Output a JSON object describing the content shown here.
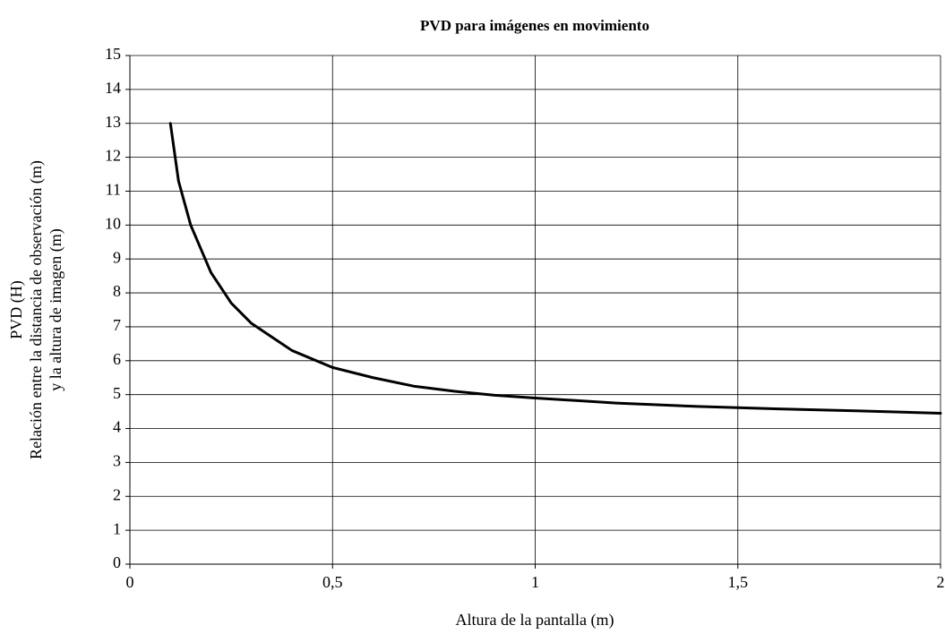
{
  "chart_data": {
    "type": "line",
    "title": "PVD para imágenes en movimiento",
    "x_label": "Altura de la pantalla (m)",
    "y_label": [
      "PVD (H)",
      "Relación entre la distancia de observación (m)",
      "y la altura de imagen (m)"
    ],
    "x": [
      0.1,
      0.12,
      0.15,
      0.2,
      0.25,
      0.3,
      0.4,
      0.5,
      0.6,
      0.7,
      0.8,
      0.9,
      1.0,
      1.2,
      1.4,
      1.6,
      1.8,
      2.0
    ],
    "series": [
      {
        "color": "#000000",
        "values": [
          13,
          11.3,
          10,
          8.6,
          7.7,
          7.1,
          6.3,
          5.8,
          5.5,
          5.25,
          5.1,
          4.98,
          4.9,
          4.75,
          4.65,
          4.58,
          4.52,
          4.45
        ]
      }
    ],
    "xlim": [
      0,
      2
    ],
    "xticks": [
      0,
      {
        "value": 0.5,
        "label": "0,5"
      },
      1,
      {
        "value": 1.5,
        "label": "1,5"
      },
      2
    ],
    "ylim": [
      0,
      15
    ],
    "yticks": [
      0,
      1,
      2,
      3,
      4,
      5,
      6,
      7,
      8,
      9,
      10,
      11,
      12,
      13,
      14,
      15
    ],
    "grid": true
  }
}
